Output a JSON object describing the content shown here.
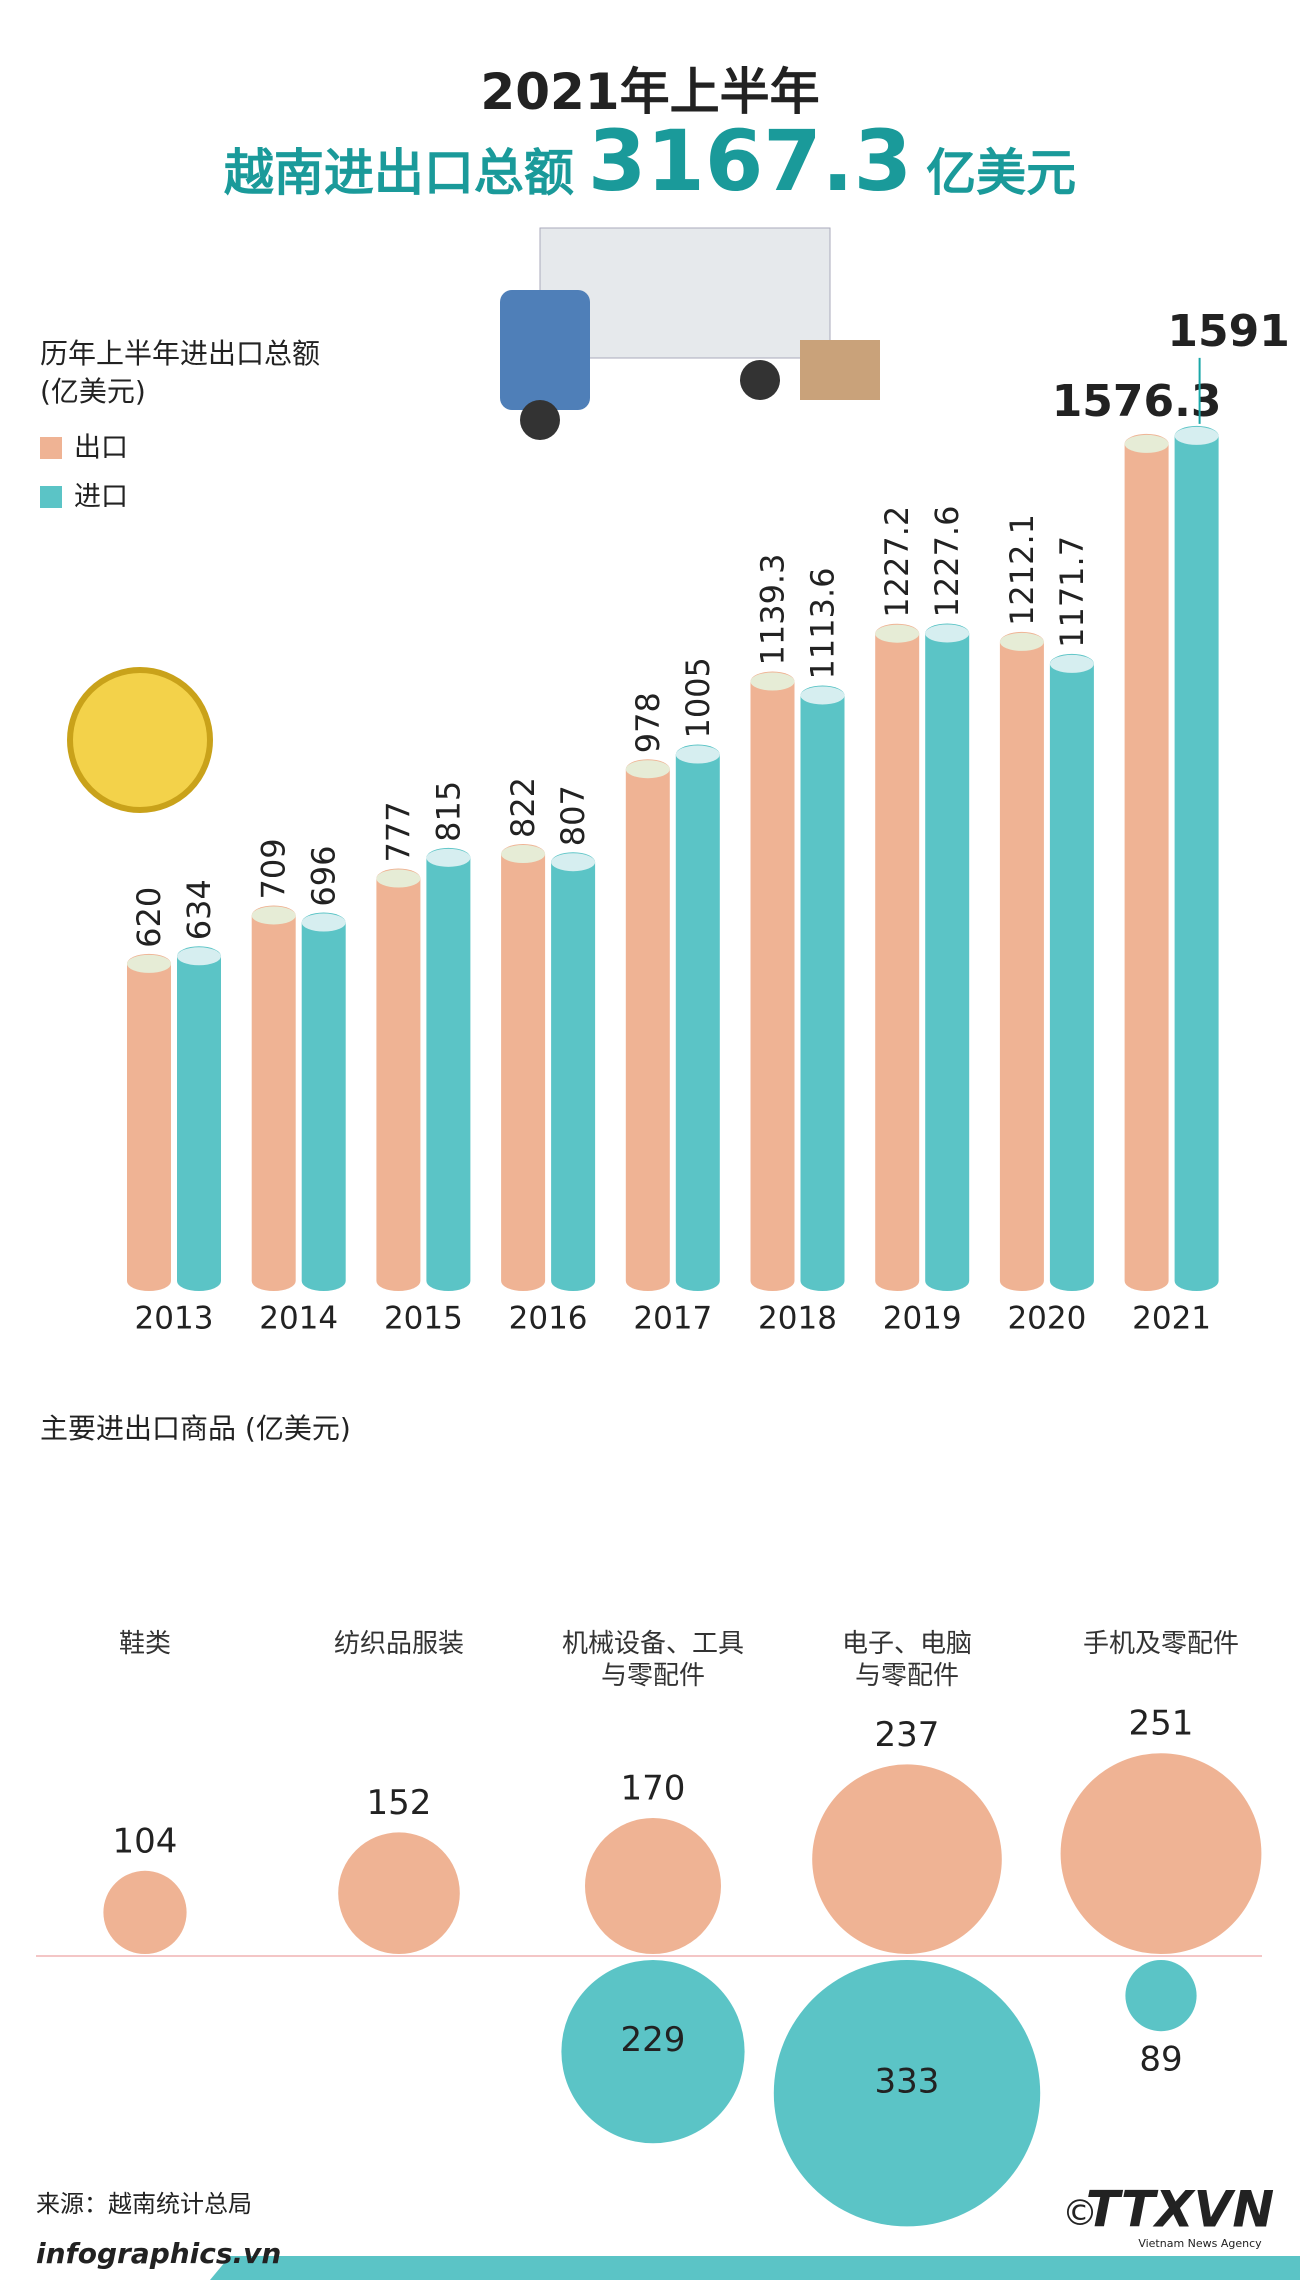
{
  "header": {
    "title": "2021年上半年",
    "headline": "越南进出口总额",
    "total": 3167.3,
    "unit": "亿美元"
  },
  "chart_data": [
    {
      "type": "bar",
      "title": "历年上半年进出口总额",
      "subtitle": "(亿美元)",
      "categories": [
        "2013",
        "2014",
        "2015",
        "2016",
        "2017",
        "2018",
        "2019",
        "2020",
        "2021"
      ],
      "series": [
        {
          "name": "出口",
          "color": "#efb394",
          "values": [
            620,
            709,
            777,
            822,
            978,
            1139.3,
            1227.2,
            1212.1,
            1576.3
          ]
        },
        {
          "name": "进口",
          "color": "#5bc4c6",
          "values": [
            634,
            696,
            815,
            807,
            1005,
            1113.6,
            1227.6,
            1171.7,
            1591
          ]
        }
      ],
      "ylim": [
        0,
        1600
      ]
    },
    {
      "type": "bubble",
      "title": "主要进出口商品 (亿美元)",
      "categories": [
        "鞋类",
        "纺织品服装",
        "机械设备、工具\n与零配件",
        "电子、电脑\n与零配件",
        "手机及零配件"
      ],
      "series": [
        {
          "color": "#efb394",
          "values": [
            104,
            152,
            170,
            237,
            251
          ]
        },
        {
          "color": "#5bc4c6",
          "values": [
            null,
            null,
            229,
            333,
            89
          ]
        }
      ]
    }
  ],
  "footer": {
    "source": "来源：越南统计总局",
    "site": "infographics.vn",
    "copyright": "©",
    "logo": "TTXVN",
    "agency": "Vietnam News Agency"
  }
}
